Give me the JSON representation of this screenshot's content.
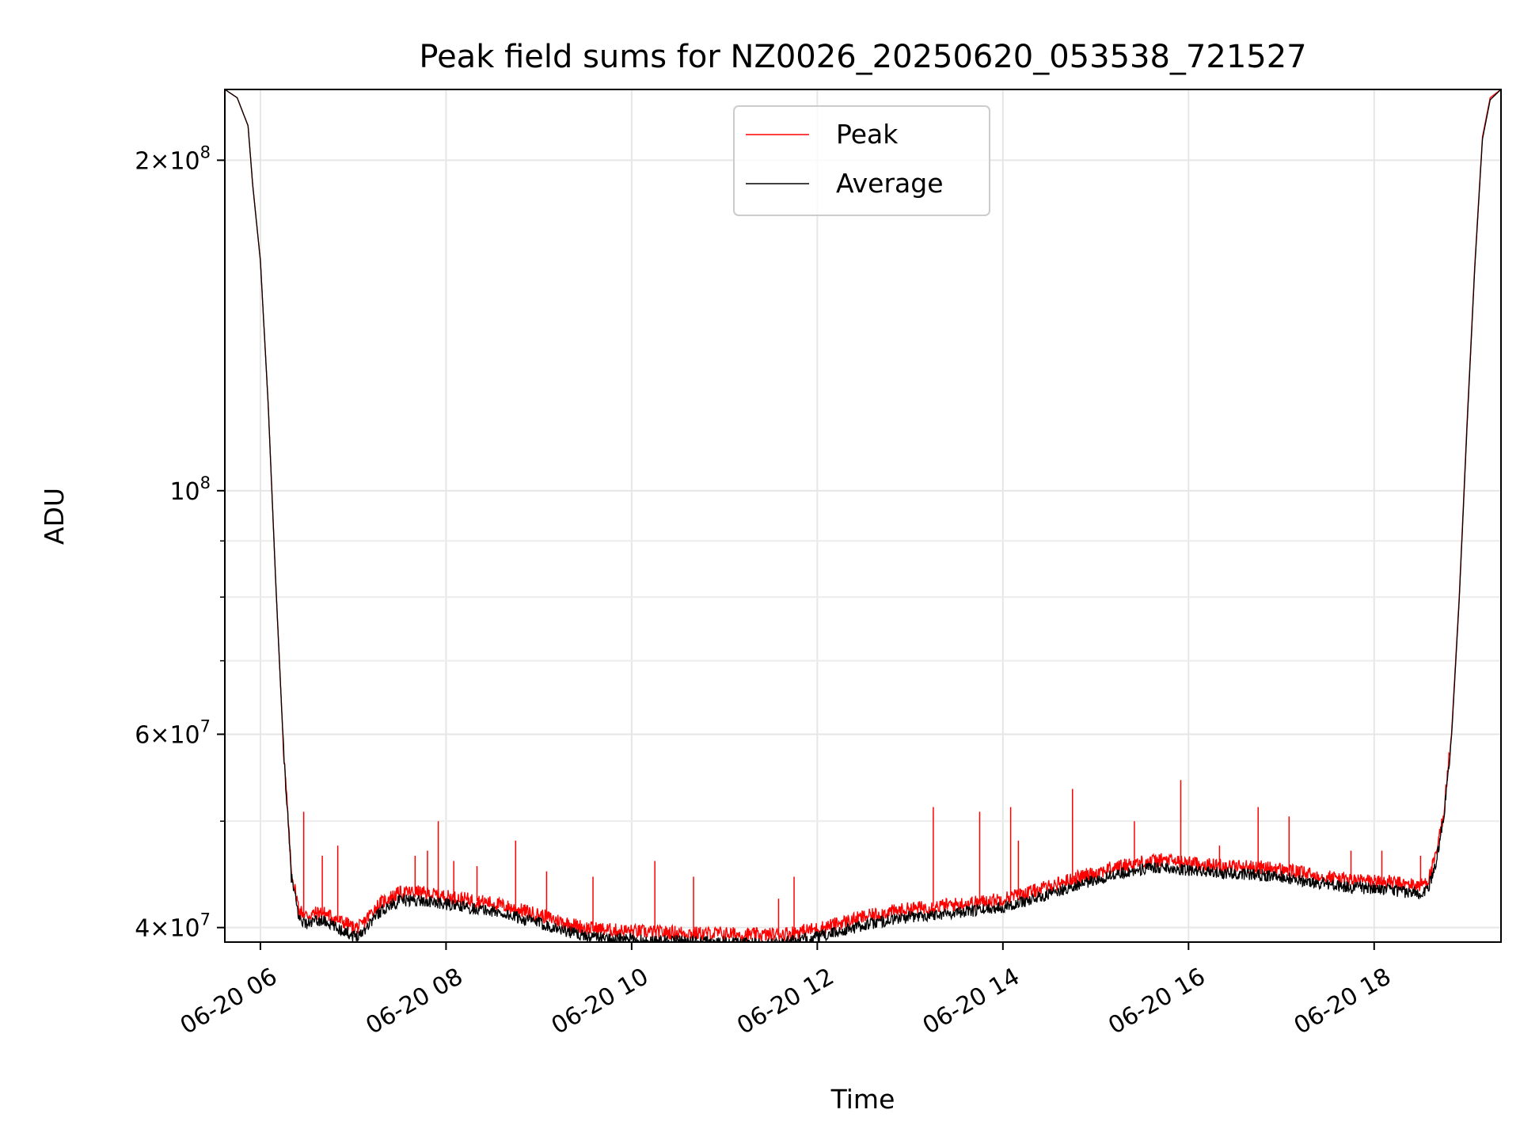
{
  "chart_data": {
    "type": "line",
    "title": "Peak field sums for NZ0026_20250620_053538_721527",
    "xlabel": "Time",
    "ylabel": "ADU",
    "yscale": "log",
    "grid": true,
    "legend_position": "top-center",
    "xlim": [
      "2025-06-20 05:37",
      "2025-06-20 19:22"
    ],
    "ylim": [
      38800000,
      232000000
    ],
    "x_ticks": [
      {
        "value": "2025-06-20 06:00",
        "label": "06-20 06"
      },
      {
        "value": "2025-06-20 08:00",
        "label": "06-20 08"
      },
      {
        "value": "2025-06-20 10:00",
        "label": "06-20 10"
      },
      {
        "value": "2025-06-20 12:00",
        "label": "06-20 12"
      },
      {
        "value": "2025-06-20 14:00",
        "label": "06-20 14"
      },
      {
        "value": "2025-06-20 16:00",
        "label": "06-20 16"
      },
      {
        "value": "2025-06-20 18:00",
        "label": "06-20 18"
      }
    ],
    "y_major_ticks": [
      {
        "value": 40000000,
        "mantissa": "4",
        "exponent": "7"
      },
      {
        "value": 60000000,
        "mantissa": "6",
        "exponent": "7"
      },
      {
        "value": 100000000,
        "mantissa": "",
        "exponent": "8"
      },
      {
        "value": 200000000,
        "mantissa": "2",
        "exponent": "8"
      }
    ],
    "y_minor_ticks": [
      50000000,
      70000000,
      80000000,
      90000000
    ],
    "series": [
      {
        "name": "Peak",
        "color": "#ff0000",
        "x": [
          "05:37",
          "05:45",
          "05:52",
          "05:55",
          "06:00",
          "06:05",
          "06:10",
          "06:15",
          "06:20",
          "06:25",
          "06:30",
          "06:35",
          "06:40",
          "06:45",
          "06:50",
          "06:55",
          "07:00",
          "07:05",
          "07:10",
          "07:15",
          "07:20",
          "07:25",
          "07:30",
          "07:40",
          "07:50",
          "08:00",
          "08:15",
          "08:30",
          "08:45",
          "09:00",
          "09:15",
          "09:30",
          "09:45",
          "10:00",
          "10:15",
          "10:30",
          "10:45",
          "11:00",
          "11:15",
          "11:30",
          "11:45",
          "12:00",
          "12:15",
          "12:30",
          "12:45",
          "13:00",
          "13:15",
          "13:30",
          "13:45",
          "14:00",
          "14:15",
          "14:30",
          "14:45",
          "15:00",
          "15:15",
          "15:30",
          "15:45",
          "16:00",
          "16:15",
          "16:30",
          "16:45",
          "17:00",
          "17:15",
          "17:30",
          "17:45",
          "18:00",
          "18:10",
          "18:20",
          "18:30",
          "18:35",
          "18:40",
          "18:45",
          "18:50",
          "18:55",
          "19:00",
          "19:05",
          "19:10",
          "19:15",
          "19:22"
        ],
        "values": [
          232000000,
          228000000,
          215000000,
          190000000,
          162000000,
          120000000,
          82000000,
          58000000,
          45000000,
          41500000,
          41000000,
          41200000,
          41300000,
          41000000,
          40600000,
          40400000,
          40000000,
          40100000,
          41000000,
          41800000,
          42300000,
          42700000,
          43000000,
          43100000,
          42900000,
          42700000,
          42400000,
          42100000,
          41600000,
          41100000,
          40500000,
          40000000,
          39800000,
          39700000,
          39600000,
          39600000,
          39500000,
          39500000,
          39400000,
          39400000,
          39600000,
          39900000,
          40400000,
          40900000,
          41300000,
          41600000,
          41800000,
          42000000,
          42200000,
          42500000,
          43000000,
          43600000,
          44300000,
          44900000,
          45500000,
          45900000,
          46100000,
          45800000,
          45600000,
          45500000,
          45400000,
          45200000,
          44800000,
          44500000,
          44200000,
          44100000,
          44000000,
          43800000,
          43700000,
          44200000,
          46500000,
          51000000,
          60000000,
          80000000,
          115000000,
          160000000,
          210000000,
          228000000,
          232000000
        ]
      },
      {
        "name": "Average",
        "color": "#000000",
        "x": [
          "05:37",
          "05:45",
          "05:52",
          "05:55",
          "06:00",
          "06:05",
          "06:10",
          "06:15",
          "06:20",
          "06:25",
          "06:30",
          "06:35",
          "06:40",
          "06:45",
          "06:50",
          "06:55",
          "07:00",
          "07:05",
          "07:10",
          "07:15",
          "07:20",
          "07:25",
          "07:30",
          "07:40",
          "07:50",
          "08:00",
          "08:15",
          "08:30",
          "08:45",
          "09:00",
          "09:15",
          "09:30",
          "09:45",
          "10:00",
          "10:15",
          "10:30",
          "10:45",
          "11:00",
          "11:15",
          "11:30",
          "11:45",
          "12:00",
          "12:15",
          "12:30",
          "12:45",
          "13:00",
          "13:15",
          "13:30",
          "13:45",
          "14:00",
          "14:15",
          "14:30",
          "14:45",
          "15:00",
          "15:15",
          "15:30",
          "15:45",
          "16:00",
          "16:15",
          "16:30",
          "16:45",
          "17:00",
          "17:15",
          "17:30",
          "17:45",
          "18:00",
          "18:10",
          "18:20",
          "18:30",
          "18:35",
          "18:40",
          "18:45",
          "18:50",
          "18:55",
          "19:00",
          "19:05",
          "19:10",
          "19:15",
          "19:22"
        ],
        "values": [
          232000000,
          228000000,
          215000000,
          190000000,
          162000000,
          120000000,
          82000000,
          58000000,
          44500000,
          40800000,
          40300000,
          40500000,
          40600000,
          40300000,
          39900000,
          39700000,
          39300000,
          39500000,
          40300000,
          41100000,
          41600000,
          42000000,
          42300000,
          42400000,
          42200000,
          42000000,
          41700000,
          41400000,
          40900000,
          40400000,
          39800000,
          39300000,
          39100000,
          39000000,
          38900000,
          38900000,
          38800000,
          38800000,
          38700000,
          38700000,
          38900000,
          39200000,
          39700000,
          40200000,
          40600000,
          40900000,
          41100000,
          41300000,
          41500000,
          41800000,
          42300000,
          42900000,
          43600000,
          44200000,
          44800000,
          45200000,
          45400000,
          45100000,
          44900000,
          44800000,
          44700000,
          44500000,
          44100000,
          43800000,
          43500000,
          43400000,
          43300000,
          43100000,
          43000000,
          43500000,
          45800000,
          50500000,
          59500000,
          79500000,
          114000000,
          159000000,
          209000000,
          227000000,
          232000000
        ]
      }
    ],
    "spikes": [
      {
        "x": "06:28",
        "value": 51000000
      },
      {
        "x": "06:40",
        "value": 46500000
      },
      {
        "x": "06:50",
        "value": 47500000
      },
      {
        "x": "07:40",
        "value": 46500000
      },
      {
        "x": "07:48",
        "value": 47000000
      },
      {
        "x": "07:55",
        "value": 50000000
      },
      {
        "x": "08:05",
        "value": 46000000
      },
      {
        "x": "08:20",
        "value": 45500000
      },
      {
        "x": "08:45",
        "value": 48000000
      },
      {
        "x": "09:05",
        "value": 45000000
      },
      {
        "x": "09:35",
        "value": 44500000
      },
      {
        "x": "10:15",
        "value": 46000000
      },
      {
        "x": "10:40",
        "value": 44500000
      },
      {
        "x": "11:35",
        "value": 42500000
      },
      {
        "x": "11:45",
        "value": 44500000
      },
      {
        "x": "13:15",
        "value": 51500000
      },
      {
        "x": "13:45",
        "value": 51000000
      },
      {
        "x": "14:05",
        "value": 51500000
      },
      {
        "x": "14:10",
        "value": 48000000
      },
      {
        "x": "14:45",
        "value": 53500000
      },
      {
        "x": "15:25",
        "value": 50000000
      },
      {
        "x": "15:55",
        "value": 54500000
      },
      {
        "x": "16:20",
        "value": 47500000
      },
      {
        "x": "16:45",
        "value": 51500000
      },
      {
        "x": "17:05",
        "value": 50500000
      },
      {
        "x": "17:45",
        "value": 47000000
      },
      {
        "x": "18:05",
        "value": 47000000
      },
      {
        "x": "18:30",
        "value": 46500000
      }
    ]
  }
}
